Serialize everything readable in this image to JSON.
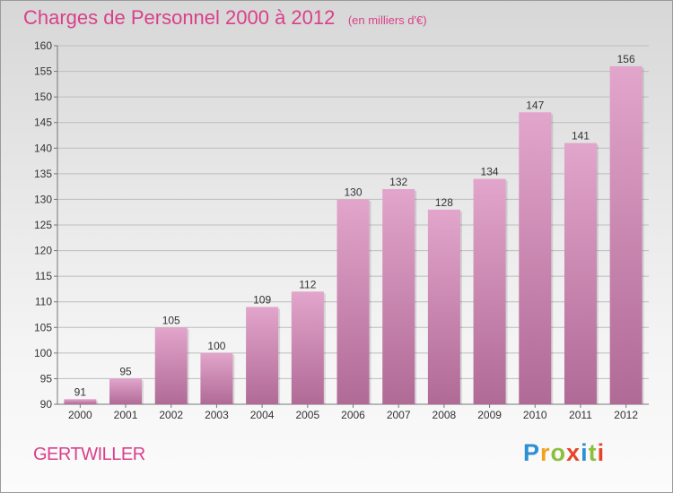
{
  "header": {
    "title": "Charges de Personnel 2000 à 2012",
    "subtitle": "(en milliers d'€)"
  },
  "footer": {
    "place": "GERTWILLER",
    "logo": {
      "letters": [
        "P",
        "r",
        "o",
        "x",
        "i",
        "t",
        "i"
      ],
      "colors": [
        "#2d8fd4",
        "#f2a21c",
        "#8bbf3c",
        "#e8432a",
        "#2d8fd4",
        "#8bbf3c",
        "#e8432a"
      ]
    }
  },
  "colors": {
    "bar_top": "#e2a5cb",
    "bar_bottom": "#b06a96",
    "title": "#d9408a",
    "grid": "#bdbdbd"
  },
  "chart_data": {
    "type": "bar",
    "title": "Charges de Personnel 2000 à 2012",
    "subtitle": "(en milliers d'€)",
    "categories": [
      "2000",
      "2001",
      "2002",
      "2003",
      "2004",
      "2005",
      "2006",
      "2007",
      "2008",
      "2009",
      "2010",
      "2011",
      "2012"
    ],
    "values": [
      91,
      95,
      105,
      100,
      109,
      112,
      130,
      132,
      128,
      134,
      147,
      141,
      156
    ],
    "ylim": [
      90,
      160
    ],
    "yticks": [
      90,
      95,
      100,
      105,
      110,
      115,
      120,
      125,
      130,
      135,
      140,
      145,
      150,
      155,
      160
    ],
    "grid": true,
    "xlabel": "",
    "ylabel": ""
  }
}
